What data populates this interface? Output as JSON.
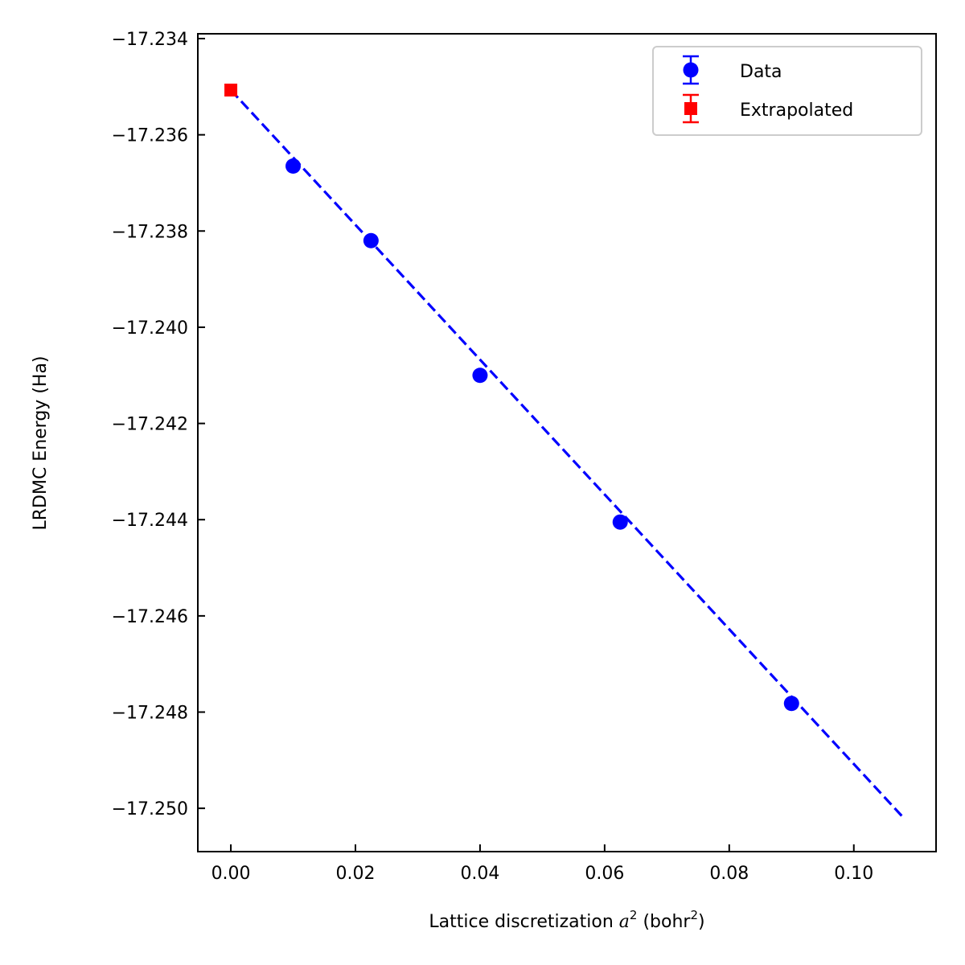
{
  "chart_data": {
    "type": "scatter",
    "xlabel_prefix": "Lattice discretization ",
    "xlabel_var": "a",
    "xlabel_var_sup": "2",
    "xlabel_unit_prefix": " (bohr",
    "xlabel_unit_sup": "2",
    "xlabel_unit_suffix": ")",
    "ylabel": "LRDMC Energy (Ha)",
    "xlim": [
      -0.0053,
      0.1132
    ],
    "ylim": [
      -17.2509,
      -17.2339
    ],
    "x_ticks": [
      "0.00",
      "0.02",
      "0.04",
      "0.06",
      "0.08",
      "0.10"
    ],
    "x_tick_values": [
      0.0,
      0.02,
      0.04,
      0.06,
      0.08,
      0.1
    ],
    "y_ticks": [
      "−17.234",
      "−17.236",
      "−17.238",
      "−17.240",
      "−17.242",
      "−17.244",
      "−17.246",
      "−17.248",
      "−17.250"
    ],
    "y_tick_values": [
      -17.234,
      -17.236,
      -17.238,
      -17.24,
      -17.242,
      -17.244,
      -17.246,
      -17.248,
      -17.25
    ],
    "grid": false,
    "legend_position": "top-right",
    "series": [
      {
        "name": "Data",
        "color": "#0000ff",
        "marker": "circle",
        "points": [
          {
            "x": 0.01,
            "y": -17.23665,
            "err": 0.00033
          },
          {
            "x": 0.0225,
            "y": -17.2382,
            "err": 0.0003
          },
          {
            "x": 0.04,
            "y": -17.241,
            "err": 0.00025
          },
          {
            "x": 0.0625,
            "y": -17.24405,
            "err": 0.00025
          },
          {
            "x": 0.09,
            "y": -17.24782,
            "err": 0.00033
          }
        ]
      },
      {
        "name": "Extrapolated",
        "color": "#ff0000",
        "marker": "square",
        "points": [
          {
            "x": 0.0,
            "y": -17.23507,
            "err": 0.00045
          }
        ]
      }
    ],
    "fit_line": {
      "color": "#0000ff",
      "style": "dashed",
      "x": [
        0.0,
        0.108
      ],
      "y": [
        -17.23507,
        -17.2502
      ]
    }
  }
}
